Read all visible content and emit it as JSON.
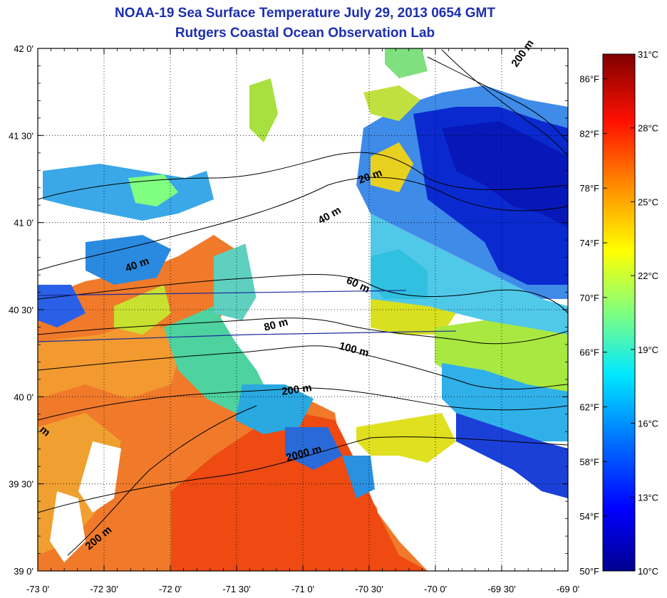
{
  "title": "NOAA-19 Sea Surface Temperature July 29, 2013 0654 GMT",
  "subtitle": "Rutgers Coastal Ocean Observation Lab",
  "map": {
    "lon_range": [
      -73.0,
      -69.0
    ],
    "lat_range": [
      39.0,
      42.0
    ],
    "lat_ticks": [
      {
        "value": 42.0,
        "label": "42 0'"
      },
      {
        "value": 41.5,
        "label": "41 30'"
      },
      {
        "value": 41.0,
        "label": "41 0'"
      },
      {
        "value": 40.5,
        "label": "40 30'"
      },
      {
        "value": 40.0,
        "label": "40 0'"
      },
      {
        "value": 39.5,
        "label": "39 30'"
      },
      {
        "value": 39.0,
        "label": "39 0'"
      }
    ],
    "lon_ticks": [
      {
        "value": -73.0,
        "label": "-73 0'"
      },
      {
        "value": -72.5,
        "label": "-72 30'"
      },
      {
        "value": -72.0,
        "label": "-72 0'"
      },
      {
        "value": -71.5,
        "label": "-71 30'"
      },
      {
        "value": -71.0,
        "label": "-71 0'"
      },
      {
        "value": -70.5,
        "label": "-70 30'"
      },
      {
        "value": -70.0,
        "label": "-70 0'"
      },
      {
        "value": -69.5,
        "label": "-69 30'"
      },
      {
        "value": -69.0,
        "label": "-69 0'"
      }
    ],
    "contour_labels": [
      "20 m",
      "40 m",
      "40 m",
      "60 m",
      "80 m",
      "100 m",
      "200 m",
      "200 m",
      "200 m",
      "2000 m",
      "m"
    ]
  },
  "colorbar": {
    "celsius": [
      {
        "value": 31,
        "label": "31°C"
      },
      {
        "value": 28,
        "label": "28°C"
      },
      {
        "value": 25,
        "label": "25°C"
      },
      {
        "value": 22,
        "label": "22°C"
      },
      {
        "value": 19,
        "label": "19°C"
      },
      {
        "value": 16,
        "label": "16°C"
      },
      {
        "value": 13,
        "label": "13°C"
      },
      {
        "value": 10,
        "label": "10°C"
      }
    ],
    "fahrenheit": [
      {
        "value": 86,
        "label": "86°F"
      },
      {
        "value": 82,
        "label": "82°F"
      },
      {
        "value": 78,
        "label": "78°F"
      },
      {
        "value": 74,
        "label": "74°F"
      },
      {
        "value": 70,
        "label": "70°F"
      },
      {
        "value": 66,
        "label": "66°F"
      },
      {
        "value": 62,
        "label": "62°F"
      },
      {
        "value": 58,
        "label": "58°F"
      },
      {
        "value": 54,
        "label": "54°F"
      },
      {
        "value": 50,
        "label": "50°F"
      }
    ],
    "colors": [
      "#00008f",
      "#0000ff",
      "#0080ff",
      "#00ffff",
      "#80ff80",
      "#ffff00",
      "#ff8000",
      "#ff0000",
      "#800000"
    ]
  }
}
